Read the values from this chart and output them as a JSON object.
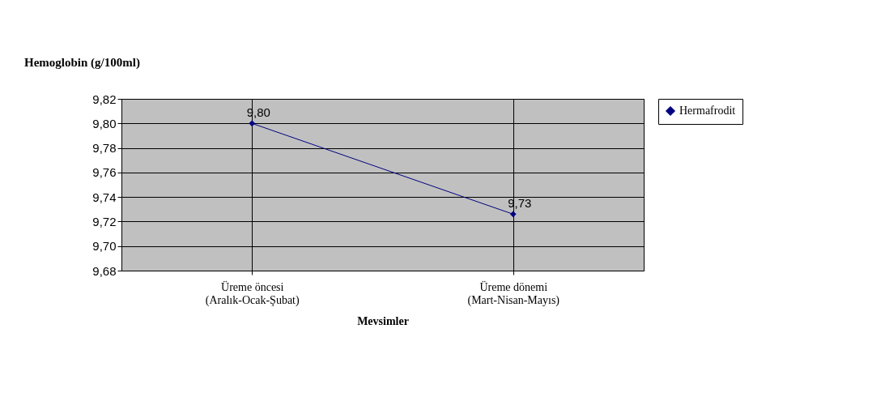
{
  "chart_data": {
    "type": "line",
    "title": "Hemoglobin (g/100ml)",
    "xlabel": "Mevsimler",
    "categories": [
      "Üreme öncesi\n(Aralık-Ocak-Şubat)",
      "Üreme dönemi\n(Mart-Nisan-Mayıs)"
    ],
    "series": [
      {
        "name": "Hermafrodit",
        "color": "#000080",
        "values": [
          9.8,
          9.726
        ],
        "value_labels": [
          "9,80",
          "9,73"
        ]
      }
    ],
    "ylim": [
      9.68,
      9.82
    ],
    "yticks": [
      {
        "value": 9.68,
        "label": "9,68"
      },
      {
        "value": 9.7,
        "label": "9,70"
      },
      {
        "value": 9.72,
        "label": "9,72"
      },
      {
        "value": 9.74,
        "label": "9,74"
      },
      {
        "value": 9.76,
        "label": "9,76"
      },
      {
        "value": 9.78,
        "label": "9,78"
      },
      {
        "value": 9.8,
        "label": "9,80"
      },
      {
        "value": 9.82,
        "label": "9,82"
      }
    ],
    "grid": true,
    "legend": "right",
    "marker": "diamond",
    "line_style": "solid"
  }
}
